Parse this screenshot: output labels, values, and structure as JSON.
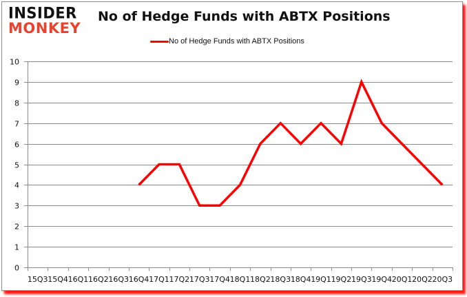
{
  "logo": {
    "line1": "INSIDER",
    "line2": "MONKEY",
    "line1_color": "#111111",
    "line2_color": "#e8432e"
  },
  "title": "No of Hedge Funds with ABTX Positions",
  "legend": {
    "label": "No of Hedge Funds with ABTX Positions",
    "color": "#ff0000"
  },
  "chart_data": {
    "type": "line",
    "title": "No of Hedge Funds with ABTX Positions",
    "xlabel": "",
    "ylabel": "",
    "categories": [
      "15Q3",
      "15Q4",
      "16Q1",
      "16Q2",
      "16Q3",
      "16Q4",
      "17Q1",
      "17Q2",
      "17Q3",
      "17Q4",
      "18Q1",
      "18Q2",
      "18Q3",
      "18Q4",
      "19Q1",
      "19Q2",
      "19Q3",
      "19Q4",
      "20Q1",
      "20Q2",
      "20Q3"
    ],
    "series": [
      {
        "name": "No of Hedge Funds with ABTX Positions",
        "color": "#ff0000",
        "values": [
          null,
          null,
          null,
          null,
          null,
          4,
          5,
          5,
          3,
          3,
          4,
          6,
          7,
          6,
          7,
          6,
          9,
          7,
          6,
          5,
          4
        ]
      }
    ],
    "ylim": [
      0,
      10
    ],
    "yticks": [
      0,
      1,
      2,
      3,
      4,
      5,
      6,
      7,
      8,
      9,
      10
    ],
    "grid": true,
    "legend_position": "top"
  }
}
